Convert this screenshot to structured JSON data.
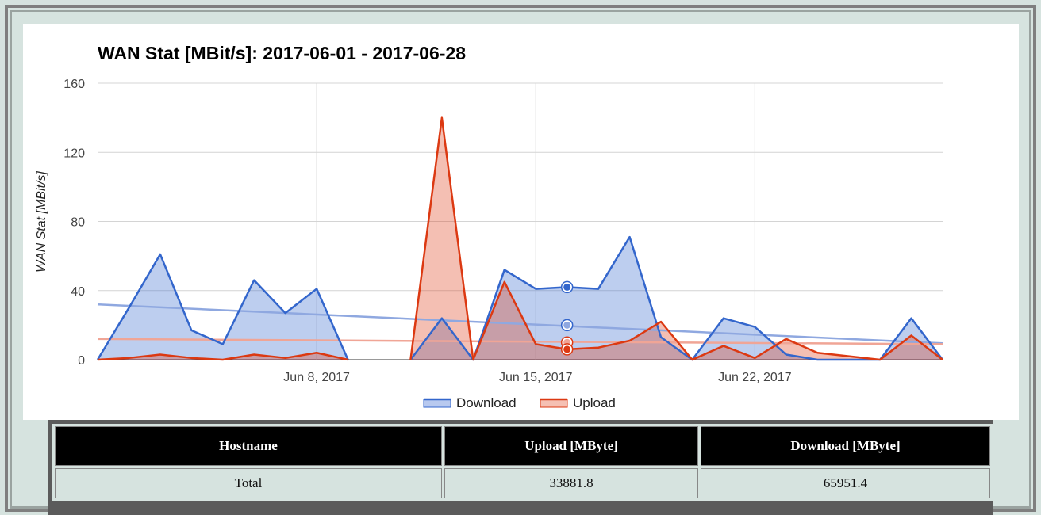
{
  "chart_data": {
    "type": "area",
    "title": "WAN Stat [MBit/s]: 2017-06-01 - 2017-06-28",
    "xlabel": "",
    "ylabel": "WAN Stat [MBit/s]",
    "ylim": [
      0,
      160
    ],
    "yticks": [
      "0",
      "40",
      "80",
      "120",
      "160"
    ],
    "xlim": [
      "2017-06-01",
      "2017-06-28"
    ],
    "xticks": [
      {
        "date": "2017-06-08",
        "label": "Jun 8, 2017"
      },
      {
        "date": "2017-06-15",
        "label": "Jun 15, 2017"
      },
      {
        "date": "2017-06-22",
        "label": "Jun 22, 2017"
      }
    ],
    "grid": true,
    "legend_position": "bottom",
    "series": [
      {
        "name": "Download",
        "color": "#3366cc",
        "x": [
          "2017-06-01",
          "2017-06-02",
          "2017-06-03",
          "2017-06-04",
          "2017-06-05",
          "2017-06-06",
          "2017-06-07",
          "2017-06-08",
          "2017-06-09",
          "2017-06-10",
          "2017-06-11",
          "2017-06-12",
          "2017-06-13",
          "2017-06-14",
          "2017-06-15",
          "2017-06-16",
          "2017-06-17",
          "2017-06-18",
          "2017-06-19",
          "2017-06-20",
          "2017-06-21",
          "2017-06-22",
          "2017-06-23",
          "2017-06-24",
          "2017-06-25",
          "2017-06-26",
          "2017-06-27",
          "2017-06-28"
        ],
        "values": [
          0,
          30,
          61,
          17,
          9,
          46,
          27,
          41,
          0,
          null,
          0,
          24,
          0,
          52,
          41,
          42,
          41,
          71,
          13,
          0,
          24,
          19,
          3,
          0,
          0,
          0,
          24,
          0
        ]
      },
      {
        "name": "Upload",
        "color": "#dc3912",
        "x": [
          "2017-06-01",
          "2017-06-02",
          "2017-06-03",
          "2017-06-04",
          "2017-06-05",
          "2017-06-06",
          "2017-06-07",
          "2017-06-08",
          "2017-06-09",
          "2017-06-10",
          "2017-06-11",
          "2017-06-12",
          "2017-06-13",
          "2017-06-14",
          "2017-06-15",
          "2017-06-16",
          "2017-06-17",
          "2017-06-18",
          "2017-06-19",
          "2017-06-20",
          "2017-06-21",
          "2017-06-22",
          "2017-06-23",
          "2017-06-24",
          "2017-06-25",
          "2017-06-26",
          "2017-06-27",
          "2017-06-28"
        ],
        "values": [
          0,
          1,
          3,
          1,
          0,
          3,
          1,
          4,
          0,
          null,
          0,
          140,
          0,
          45,
          9,
          6,
          7,
          11,
          22,
          0,
          8,
          1,
          12,
          4,
          2,
          0,
          14,
          0
        ]
      }
    ],
    "trendlines": [
      {
        "series": "Download",
        "start": 32,
        "end": 9.5,
        "color": "#8fa8e0"
      },
      {
        "series": "Upload",
        "start": 12,
        "end": 9,
        "color": "#f0a596"
      }
    ],
    "highlight": {
      "index": 15,
      "trend_download": 20,
      "trend_upload": 10
    }
  },
  "legend": {
    "download": "Download",
    "upload": "Upload"
  },
  "table": {
    "headers": [
      "Hostname",
      "Upload [MByte]",
      "Download [MByte]"
    ],
    "rows": [
      [
        "Total",
        "33881.8",
        "65951.4"
      ]
    ]
  }
}
